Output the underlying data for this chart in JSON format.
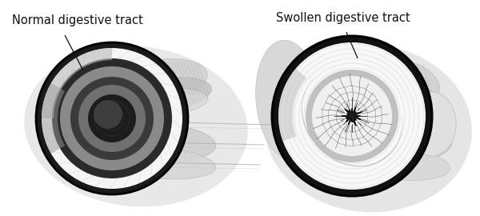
{
  "title_left": "Normal digestive tract",
  "title_right": "Swollen digestive tract",
  "bg_color": "#ffffff",
  "fig_width": 6.0,
  "fig_height": 2.7,
  "dpi": 100,
  "annotation_color": "#111111"
}
